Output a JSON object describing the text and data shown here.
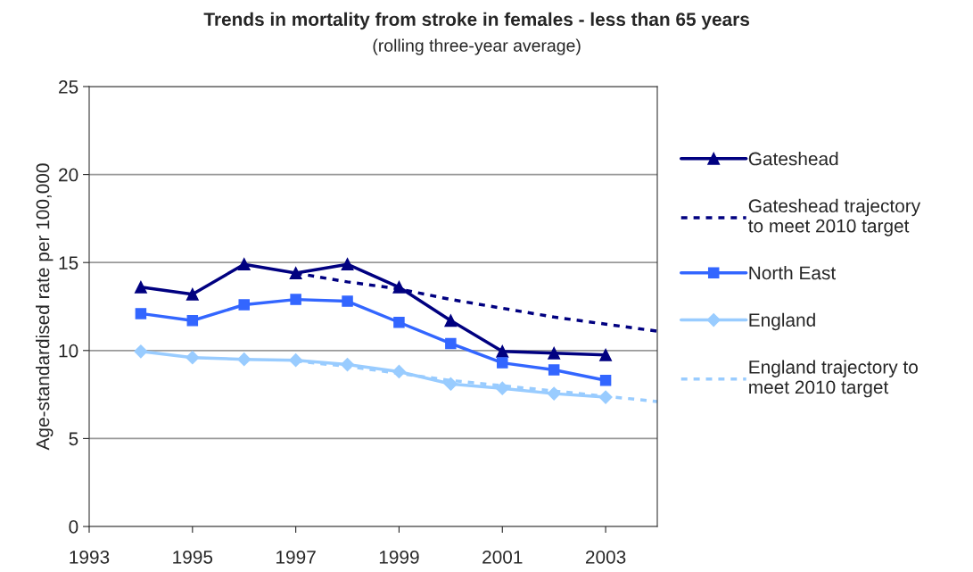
{
  "chart_data": {
    "type": "line",
    "title": "Trends in mortality from stroke in females - less than 65 years",
    "subtitle": "(rolling three-year average)",
    "ylabel": "Age-standardised rate per 100,000",
    "xlim": [
      1993,
      2004
    ],
    "xticks": [
      1993,
      1995,
      1997,
      1999,
      2001,
      2003
    ],
    "ylim": [
      0,
      25
    ],
    "yticks": [
      0,
      5,
      10,
      15,
      20,
      25
    ],
    "grid": "y",
    "legend": "right",
    "series": [
      {
        "name": "Gateshead",
        "color": "#000080",
        "marker": "triangle",
        "line_style": "solid",
        "x": [
          1994,
          1995,
          1996,
          1997,
          1998,
          1999,
          2000,
          2001,
          2002,
          2003
        ],
        "values": [
          13.6,
          13.2,
          14.9,
          14.4,
          14.9,
          13.6,
          11.7,
          9.95,
          9.85,
          9.75
        ]
      },
      {
        "name": "Gateshead trajectory\nto meet 2010 target",
        "color": "#000080",
        "marker": "none",
        "line_style": "dashed",
        "x": [
          1997,
          1998,
          1999,
          2000,
          2001,
          2002,
          2003,
          2004
        ],
        "values": [
          14.4,
          13.9,
          13.5,
          12.9,
          12.4,
          11.9,
          11.5,
          11.1
        ]
      },
      {
        "name": "North East",
        "color": "#3366ff",
        "marker": "square",
        "line_style": "solid",
        "x": [
          1994,
          1995,
          1996,
          1997,
          1998,
          1999,
          2000,
          2001,
          2002,
          2003
        ],
        "values": [
          12.1,
          11.7,
          12.6,
          12.9,
          12.8,
          11.6,
          10.4,
          9.3,
          8.9,
          8.3
        ]
      },
      {
        "name": "England",
        "color": "#99ccff",
        "marker": "diamond",
        "line_style": "solid",
        "x": [
          1994,
          1995,
          1996,
          1997,
          1998,
          1999,
          2000,
          2001,
          2002,
          2003
        ],
        "values": [
          9.95,
          9.6,
          9.5,
          9.45,
          9.2,
          8.8,
          8.1,
          7.85,
          7.55,
          7.35
        ]
      },
      {
        "name": "England trajectory to\nmeet 2010 target",
        "color": "#99ccff",
        "marker": "none",
        "line_style": "dashed",
        "x": [
          1997,
          1998,
          1999,
          2000,
          2001,
          2002,
          2003,
          2004
        ],
        "values": [
          9.4,
          9.1,
          8.7,
          8.3,
          8.0,
          7.7,
          7.4,
          7.1
        ]
      }
    ]
  }
}
